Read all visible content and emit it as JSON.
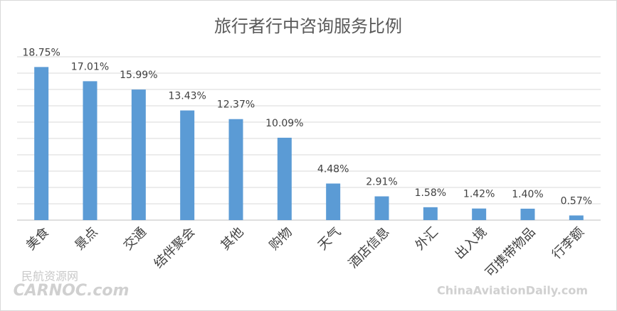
{
  "chart_data": {
    "type": "bar",
    "title": "旅行者行中咨询服务比例",
    "categories": [
      "美食",
      "景点",
      "交通",
      "结伴聚会",
      "其他",
      "购物",
      "天气",
      "酒店信息",
      "外汇",
      "出入境",
      "可携带物品",
      "行李额"
    ],
    "values": [
      18.75,
      17.01,
      15.99,
      13.43,
      12.37,
      10.09,
      4.48,
      2.91,
      1.58,
      1.42,
      1.4,
      0.57
    ],
    "value_labels": [
      "18.75%",
      "17.01%",
      "15.99%",
      "13.43%",
      "12.37%",
      "10.09%",
      "4.48%",
      "2.91%",
      "1.58%",
      "1.42%",
      "1.40%",
      "0.57%"
    ],
    "color": "#5b9bd5",
    "ylim": [
      0,
      20
    ],
    "yticks": [
      0,
      2,
      4,
      6,
      8,
      10,
      12,
      14,
      16,
      18,
      20
    ],
    "grid": true
  },
  "watermarks": [
    "民航资源网",
    "CARNOC.com",
    "ChinaAviationDaily.com"
  ]
}
